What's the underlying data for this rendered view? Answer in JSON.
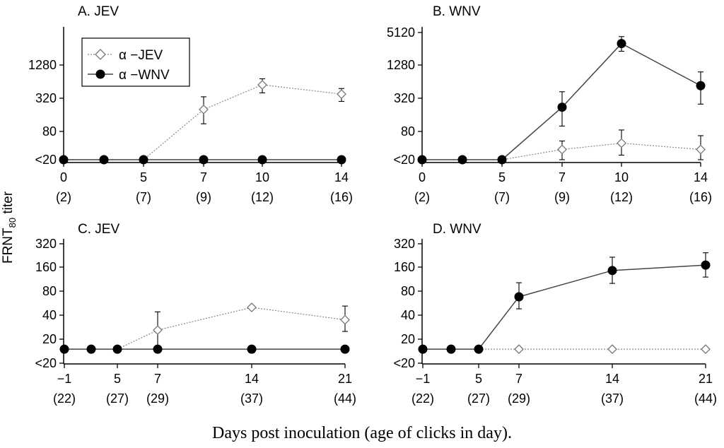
{
  "figure": {
    "ylabel_main": "FRNT",
    "ylabel_sub": "80",
    "ylabel_tail": " titer",
    "xlabel": "Days post inoculation (age of clicks in day).",
    "legend": {
      "jev": "α −JEV",
      "wnv": "α −WNV"
    }
  },
  "chart_data": [
    {
      "type": "line",
      "title": "A. JEV",
      "y_scale": "log2",
      "yticks": [
        "<20",
        "80",
        "320",
        "1280"
      ],
      "ytick_values": [
        20,
        80,
        320,
        1280
      ],
      "ylim": [
        20,
        5120
      ],
      "x": [
        0,
        2,
        5,
        7,
        10,
        14
      ],
      "xticks": [
        0,
        5,
        7,
        10,
        14
      ],
      "xtick_labels": [
        "0",
        "5",
        "7",
        "10",
        "14"
      ],
      "age_labels": [
        "(2)",
        "(7)",
        "(9)",
        "(12)",
        "(16)"
      ],
      "xlim": [
        0,
        14
      ],
      "series": [
        {
          "name": "α −JEV",
          "values": [
            20,
            20,
            20,
            200,
            560,
            380
          ],
          "err": [
            null,
            null,
            null,
            [
              110,
              340
            ],
            [
              400,
              720
            ],
            [
              280,
              480
            ]
          ]
        },
        {
          "name": "α −WNV",
          "values": [
            20,
            20,
            20,
            20,
            20,
            20
          ],
          "err": [
            null,
            null,
            null,
            null,
            null,
            null
          ]
        }
      ]
    },
    {
      "type": "line",
      "title": "B. WNV",
      "y_scale": "log2",
      "yticks": [
        "<20",
        "80",
        "320",
        "1280",
        "5120"
      ],
      "ytick_values": [
        20,
        80,
        320,
        1280,
        5120
      ],
      "ylim": [
        20,
        5120
      ],
      "x": [
        0,
        2,
        5,
        7,
        10,
        14
      ],
      "xticks": [
        0,
        5,
        7,
        10,
        14
      ],
      "xtick_labels": [
        "0",
        "5",
        "7",
        "10",
        "14"
      ],
      "age_labels": [
        "(2)",
        "(7)",
        "(9)",
        "(12)",
        "(16)"
      ],
      "xlim": [
        0,
        14
      ],
      "series": [
        {
          "name": "α −JEV",
          "values": [
            20,
            20,
            20,
            33,
            45,
            33
          ],
          "err": [
            null,
            null,
            null,
            [
              20,
              50
            ],
            [
              25,
              85
            ],
            [
              20,
              65
            ]
          ]
        },
        {
          "name": "α −WNV",
          "values": [
            20,
            20,
            20,
            220,
            3200,
            540
          ],
          "err": [
            null,
            null,
            null,
            [
              100,
              420
            ],
            [
              2300,
              4300
            ],
            [
              250,
              960
            ]
          ]
        }
      ]
    },
    {
      "type": "line",
      "title": "C. JEV",
      "y_scale": "log2",
      "yticks": [
        "<20",
        "20",
        "40",
        "80",
        "160",
        "320"
      ],
      "ytick_values": [
        10,
        20,
        40,
        80,
        160,
        320
      ],
      "ylim": [
        10,
        320
      ],
      "x": [
        -1,
        2,
        5,
        7,
        14,
        21
      ],
      "xticks": [
        -1,
        5,
        7,
        14,
        21
      ],
      "xtick_labels": [
        "−1",
        "5",
        "7",
        "14",
        "21"
      ],
      "age_labels": [
        "(22)",
        "(27)",
        "(29)",
        "(37)",
        "(44)"
      ],
      "xlim": [
        -1,
        21
      ],
      "series": [
        {
          "name": "α −JEV",
          "values": [
            15,
            15,
            15,
            26,
            50,
            35
          ],
          "err": [
            null,
            null,
            null,
            [
              15,
              44
            ],
            null,
            [
              25,
              52
            ]
          ]
        },
        {
          "name": "α −WNV",
          "values": [
            15,
            15,
            15,
            15,
            15,
            15
          ],
          "err": [
            null,
            null,
            null,
            null,
            null,
            null
          ]
        }
      ]
    },
    {
      "type": "line",
      "title": "D. WNV",
      "y_scale": "log2",
      "yticks": [
        "<20",
        "20",
        "40",
        "80",
        "160",
        "320"
      ],
      "ytick_values": [
        10,
        20,
        40,
        80,
        160,
        320
      ],
      "ylim": [
        10,
        320
      ],
      "x": [
        -1,
        2,
        5,
        7,
        14,
        21
      ],
      "xticks": [
        -1,
        5,
        7,
        14,
        21
      ],
      "xtick_labels": [
        "−1",
        "5",
        "7",
        "14",
        "21"
      ],
      "age_labels": [
        "(22)",
        "(27)",
        "(29)",
        "(37)",
        "(44)"
      ],
      "xlim": [
        -1,
        21
      ],
      "series": [
        {
          "name": "α −JEV",
          "values": [
            15,
            15,
            15,
            15,
            15,
            15
          ],
          "err": [
            null,
            null,
            null,
            null,
            null,
            null
          ]
        },
        {
          "name": "α −WNV",
          "values": [
            15,
            15,
            15,
            68,
            145,
            170
          ],
          "err": [
            null,
            null,
            null,
            [
              48,
              102
            ],
            [
              100,
              215
            ],
            [
              120,
              245
            ]
          ]
        }
      ]
    }
  ]
}
